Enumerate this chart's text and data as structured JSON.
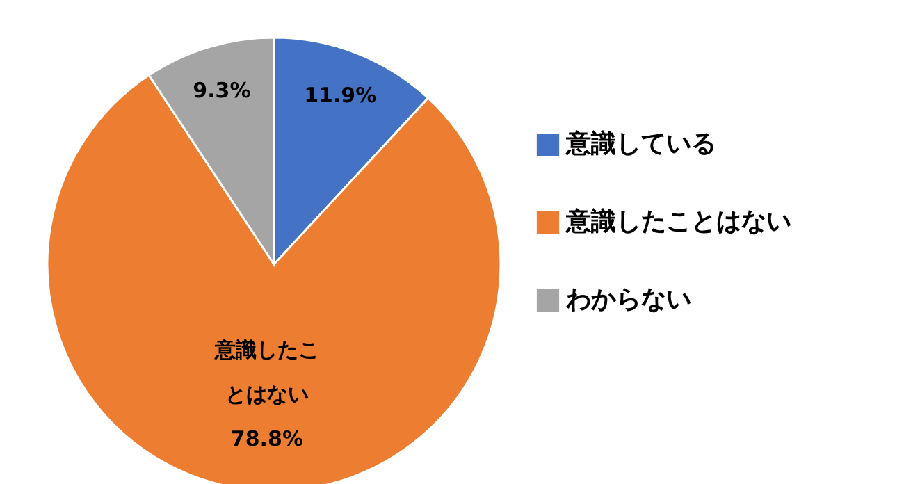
{
  "chart_data": {
    "type": "pie",
    "categories": [
      "意識している",
      "意識したことはない",
      "わからない"
    ],
    "values": [
      11.9,
      78.8,
      9.3
    ],
    "colors": [
      "#4472c4",
      "#ed7d31",
      "#a5a5a5"
    ],
    "value_labels": [
      "11.9%",
      "意識したことはない\n78.8%",
      "9.3%"
    ],
    "legend": "right"
  }
}
